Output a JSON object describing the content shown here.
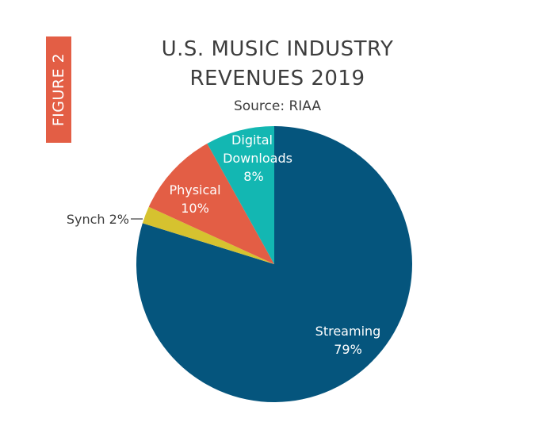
{
  "figure_tab": "FIGURE 2",
  "colors": {
    "tab": "#e35e45",
    "streaming": "#05557d",
    "digital": "#13b7b2",
    "physical": "#e35e45",
    "synch": "#d6c22f",
    "text": "#3d3d3d"
  },
  "chart_data": {
    "type": "pie",
    "title_line1": "U.S. MUSIC INDUSTRY",
    "title_line2": "REVENUES 2019",
    "subtitle": "Source: RIAA",
    "slices": [
      {
        "name": "Streaming",
        "value": 79,
        "label_line1": "Streaming",
        "label_line2": "79%",
        "color": "#05557d"
      },
      {
        "name": "Synch",
        "value": 2,
        "label_line1": "Synch 2%",
        "color": "#d6c22f"
      },
      {
        "name": "Physical",
        "value": 10,
        "label_line1": "Physical",
        "label_line2": "10%",
        "color": "#e35e45"
      },
      {
        "name": "Digital Downloads",
        "value": 8,
        "label_line1": "Digital",
        "label_line2": "Downloads",
        "label_line3": "8%",
        "color": "#13b7b2"
      }
    ]
  }
}
